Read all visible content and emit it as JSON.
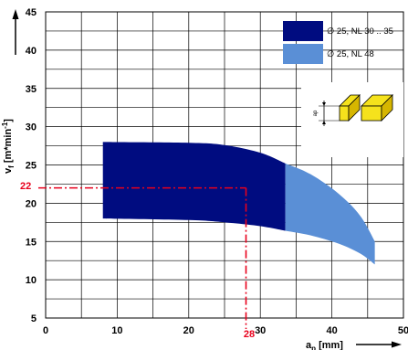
{
  "chart_data": {
    "type": "area",
    "x_axis": {
      "label_main": "a",
      "label_sub": "p",
      "label_unit": " [mm]",
      "range": [
        0,
        50
      ],
      "ticks": [
        "0",
        "10",
        "20",
        "30",
        "40",
        "50"
      ]
    },
    "y_axis": {
      "label_main": "v",
      "label_sub": "f",
      "label_unit": " [m*min",
      "label_sup": "-1",
      "label_end": "]",
      "range": [
        5,
        45
      ],
      "ticks": [
        "5",
        "10",
        "15",
        "20",
        "25",
        "30",
        "35",
        "40",
        "45"
      ]
    },
    "grid": true,
    "series": [
      {
        "name": "∅ 25, NL 30 .. 35",
        "color": "#000c80",
        "x_from": 8,
        "x_to": 33.5,
        "upper": [
          [
            8,
            28
          ],
          [
            20,
            27.9
          ],
          [
            25,
            27.6
          ],
          [
            30,
            26.6
          ],
          [
            33.5,
            25.2
          ]
        ],
        "lower": [
          [
            8,
            18
          ],
          [
            20,
            17.8
          ],
          [
            25,
            17.5
          ],
          [
            30,
            17.0
          ],
          [
            33.5,
            16.4
          ]
        ]
      },
      {
        "name": "∅ 25, NL 48",
        "color": "#5a8fd6",
        "x_from": 33.5,
        "x_to": 46,
        "upper": [
          [
            33.5,
            25.2
          ],
          [
            37,
            23.8
          ],
          [
            41,
            21.2
          ],
          [
            44,
            18.3
          ],
          [
            46,
            15.0
          ]
        ],
        "lower": [
          [
            33.5,
            16.4
          ],
          [
            37,
            15.8
          ],
          [
            41,
            14.7
          ],
          [
            44,
            13.4
          ],
          [
            46,
            12.0
          ]
        ]
      }
    ],
    "annotation": {
      "x_value": 28,
      "y_value": 22,
      "x_label": "28",
      "y_label": "22",
      "color": "#e8001c"
    },
    "inset_label": "ap"
  }
}
